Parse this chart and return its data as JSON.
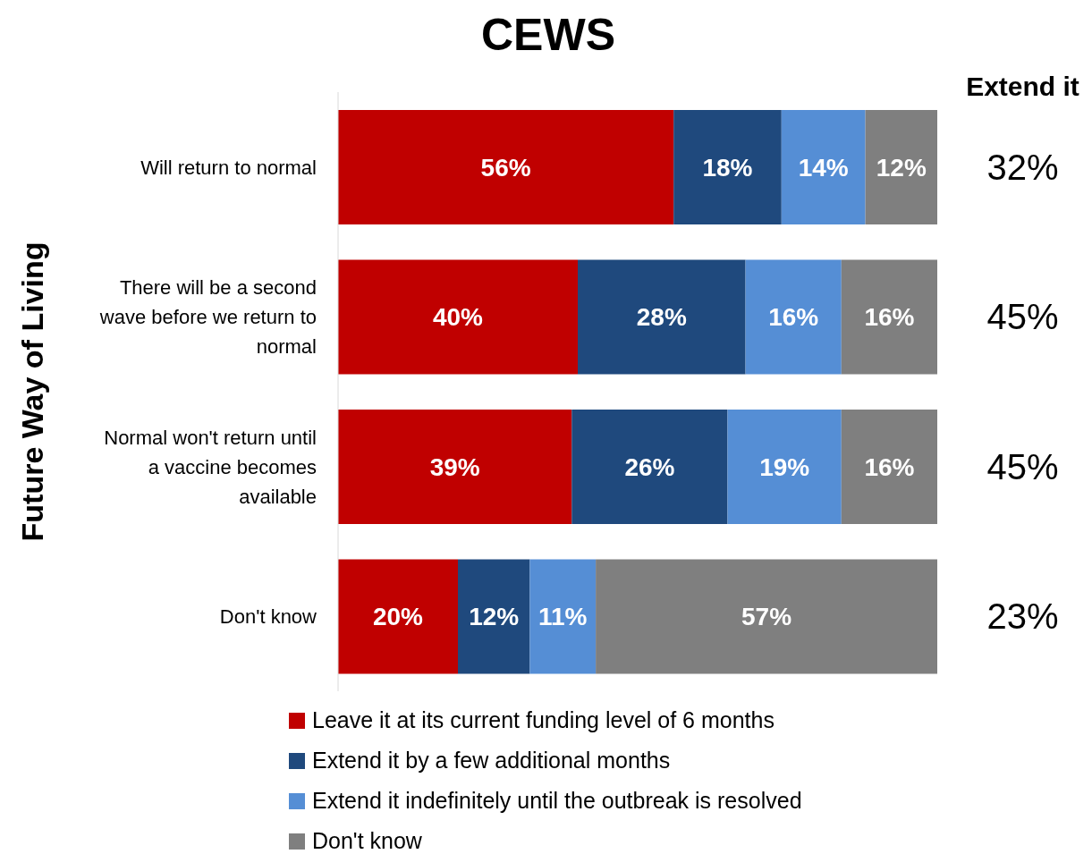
{
  "chart_data": {
    "type": "bar",
    "orientation": "horizontal",
    "stacked": true,
    "title": "CEWS",
    "ylabel": "Future Way of Living",
    "categories": [
      "Will return to normal",
      "There will be a second wave before we return to normal",
      "Normal won't return until a vaccine becomes available",
      "Don't know"
    ],
    "series": [
      {
        "name": "Leave it at its current funding level of 6 months",
        "color": "#c00000",
        "values": [
          56,
          40,
          39,
          20
        ],
        "value_labels": [
          "56%",
          "40%",
          "39%",
          "20%"
        ]
      },
      {
        "name": "Extend it by a few additional months",
        "color": "#1f497d",
        "values": [
          18,
          28,
          26,
          12
        ],
        "value_labels": [
          "18%",
          "28%",
          "26%",
          "12%"
        ]
      },
      {
        "name": "Extend it indefinitely until the outbreak is resolved",
        "color": "#558ed5",
        "values": [
          14,
          16,
          19,
          11
        ],
        "value_labels": [
          "14%",
          "16%",
          "19%",
          "11%"
        ]
      },
      {
        "name": "Don't know",
        "color": "#7f7f7f",
        "values": [
          12,
          16,
          16,
          57
        ],
        "value_labels": [
          "12%",
          "16%",
          "16%",
          "57%"
        ]
      }
    ],
    "xlim": [
      0,
      100
    ],
    "tick_labels": "y",
    "legend": "bottom",
    "annotations": [
      "Extend it",
      "32%",
      "45%",
      "45%",
      "23%"
    ]
  }
}
